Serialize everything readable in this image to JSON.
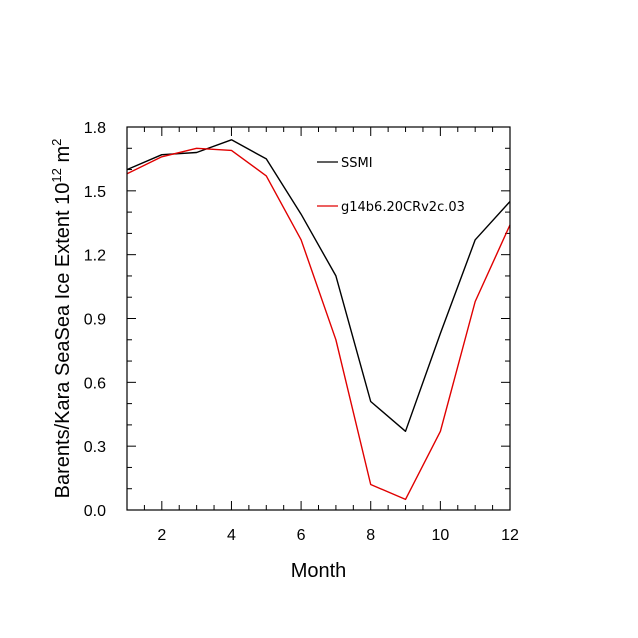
{
  "chart_data": {
    "type": "line",
    "title": "",
    "xlabel": "Month",
    "ylabel_main": "Barents/Kara SeaSea Ice Extent 10",
    "ylabel_exp": "12",
    "ylabel_unit": " m",
    "ylabel_unit_exp": "2",
    "xlim": [
      1,
      12
    ],
    "ylim": [
      0.0,
      1.8
    ],
    "xticks": [
      2,
      4,
      6,
      8,
      10,
      12
    ],
    "yticks": [
      0.0,
      0.3,
      0.6,
      0.9,
      1.2,
      1.5,
      1.8
    ],
    "ytick_labels": [
      "0.0",
      "0.3",
      "0.6",
      "0.9",
      "1.2",
      "1.5",
      "1.8"
    ],
    "x": [
      1,
      2,
      3,
      4,
      5,
      6,
      7,
      8,
      9,
      10,
      11,
      12
    ],
    "series": [
      {
        "name": "SSMI",
        "color": "#000000",
        "values": [
          1.6,
          1.67,
          1.68,
          1.74,
          1.65,
          1.39,
          1.1,
          0.51,
          0.37,
          0.83,
          1.27,
          1.45
        ]
      },
      {
        "name": "g14b6.20CRv2c.03",
        "color": "#e00000",
        "values": [
          1.58,
          1.66,
          1.7,
          1.69,
          1.57,
          1.27,
          0.8,
          0.12,
          0.05,
          0.37,
          0.98,
          1.34
        ]
      }
    ],
    "grid": false,
    "legend": "top-right inside"
  }
}
